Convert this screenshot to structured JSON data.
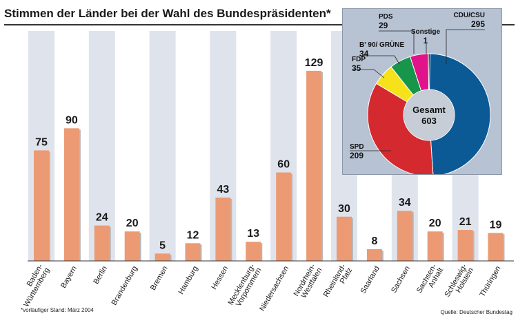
{
  "title": "Stimmen der Länder bei der Wahl des Bundespräsidenten*",
  "footnote": "*vorläufiger Stand: März 2004",
  "source": "Quelle: Deutscher Bundestag",
  "colors": {
    "bar": "#ec9a73",
    "stripe": "#dfe3ec",
    "panel": "#b7c2d3"
  },
  "chart_data": [
    {
      "type": "bar",
      "title": "Stimmen der Länder bei der Wahl des Bundespräsidenten*",
      "categories": [
        "Baden-Württemberg",
        "Bayern",
        "Berlin",
        "Brandenburg",
        "Bremen",
        "Hamburg",
        "Hessen",
        "Mecklenburg-Vorpommern",
        "Niedersachsen",
        "Nordrhein-Westfalen",
        "Rheinland-Pfalz",
        "Saarland",
        "Sachsen",
        "Sachsen-Anhalt",
        "Schleswig-Holstein",
        "Thüringen"
      ],
      "category_lines": [
        [
          "Baden-",
          "Württemberg"
        ],
        [
          "Bayern"
        ],
        [
          "Berlin"
        ],
        [
          "Brandenburg"
        ],
        [
          "Bremen"
        ],
        [
          "Hamburg"
        ],
        [
          "Hessen"
        ],
        [
          "Mecklenburg-",
          "Vorpommern"
        ],
        [
          "Niedersachsen"
        ],
        [
          "Nordrhein-",
          "Westfalen"
        ],
        [
          "Rheinland-",
          "Pfalz"
        ],
        [
          "Saarland"
        ],
        [
          "Sachsen"
        ],
        [
          "Sachsen-",
          "Anhalt"
        ],
        [
          "Schleswig-",
          "Holstein"
        ],
        [
          "Thüringen"
        ]
      ],
      "values": [
        75,
        90,
        24,
        20,
        5,
        12,
        43,
        13,
        60,
        129,
        30,
        8,
        34,
        20,
        21,
        19
      ],
      "xlabel": "",
      "ylabel": "",
      "ylim": [
        0,
        135
      ],
      "grid": false
    },
    {
      "type": "pie",
      "center_label": "Gesamt",
      "center_value": 603,
      "slices": [
        {
          "label": "CDU/CSU",
          "value": 295,
          "color": "#0b5a96"
        },
        {
          "label": "SPD",
          "value": 209,
          "color": "#d42a2f"
        },
        {
          "label": "FDP",
          "value": 35,
          "color": "#f5e21a"
        },
        {
          "label": "B' 90/ GRÜNE",
          "value": 34,
          "color": "#17954a"
        },
        {
          "label": "PDS",
          "value": 29,
          "color": "#e0138a"
        },
        {
          "label": "Sonstige",
          "value": 1,
          "color": "#111111"
        }
      ]
    }
  ]
}
